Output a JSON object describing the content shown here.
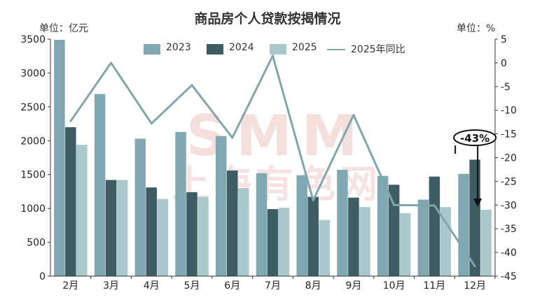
{
  "title": "商品房个人贷款按揭情况",
  "left_unit": "单位：亿元",
  "right_unit": "单位：%",
  "legend": {
    "s2023": "2023",
    "s2024": "2024",
    "s2025": "2025",
    "yoy": "2025年同比"
  },
  "watermark": {
    "logo": "SMM",
    "text": "上海有色网"
  },
  "colors": {
    "s2023": "#7fa8b2",
    "s2024": "#3e5c63",
    "s2025": "#a9c8cc",
    "yoy": "#7ea6ac",
    "axis": "#333333",
    "watermark": "#e8b7b2"
  },
  "chart_data": {
    "type": "bar",
    "title": "商品房个人贷款按揭情况",
    "categories": [
      "2月",
      "3月",
      "4月",
      "5月",
      "6月",
      "7月",
      "8月",
      "9月",
      "10月",
      "11月",
      "12月"
    ],
    "series": [
      {
        "name": "2023",
        "type": "bar",
        "axis": "left",
        "values": [
          3490,
          2690,
          2030,
          2130,
          2070,
          1520,
          1490,
          1570,
          1480,
          1130,
          1510
        ]
      },
      {
        "name": "2024",
        "type": "bar",
        "axis": "left",
        "values": [
          2200,
          1420,
          1310,
          1240,
          1560,
          990,
          1170,
          1160,
          1350,
          1470,
          1720
        ]
      },
      {
        "name": "2025",
        "type": "bar",
        "axis": "left",
        "values": [
          1940,
          1420,
          1140,
          1170,
          1300,
          1010,
          830,
          1020,
          930,
          1020,
          980
        ]
      },
      {
        "name": "2025年同比",
        "type": "line",
        "axis": "right",
        "values": [
          -12.3,
          0,
          -12.8,
          -4.7,
          -15.8,
          1.5,
          -29,
          -11,
          -30,
          -30.1,
          -42.9
        ]
      }
    ],
    "y_left": {
      "label": "单位：亿元",
      "range": [
        0,
        3500
      ],
      "ticks": [
        0,
        500,
        1000,
        1500,
        2000,
        2500,
        3000,
        3500
      ]
    },
    "y_right": {
      "label": "单位：%",
      "range": [
        -45,
        5
      ],
      "ticks": [
        5,
        0,
        -5,
        -10,
        -15,
        -20,
        -25,
        -30,
        -35,
        -40,
        -45
      ]
    },
    "annotation": {
      "text": "-43%",
      "category": "12月"
    },
    "grid": false,
    "legend_position": "top"
  }
}
